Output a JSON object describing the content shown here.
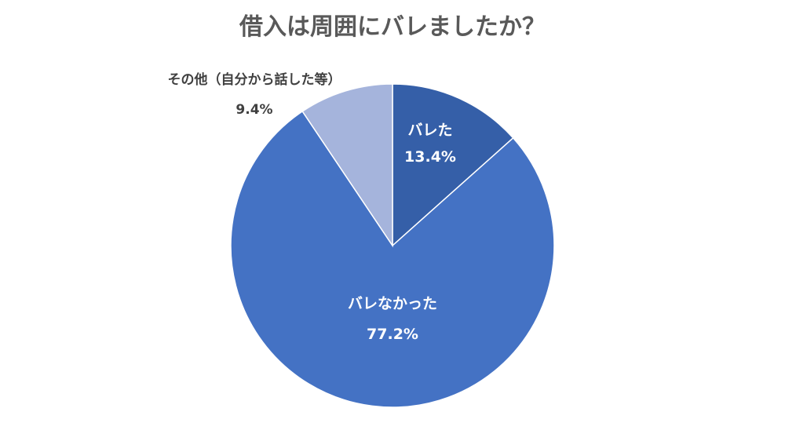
{
  "chart_data": {
    "type": "pie",
    "title": "借入は周囲にバレましたか？",
    "slices": [
      {
        "label": "バレた",
        "value": 13.4,
        "value_label": "13.4%",
        "color": "#355fa8"
      },
      {
        "label": "バレなかった",
        "value": 77.2,
        "value_label": "77.2%",
        "color": "#4472c4"
      },
      {
        "label": "その他（自分から話した等）",
        "value": 9.4,
        "value_label": "9.4%",
        "color": "#a5b4dc"
      }
    ],
    "start": "12 o'clock",
    "direction": "clockwise",
    "legend": "none"
  }
}
